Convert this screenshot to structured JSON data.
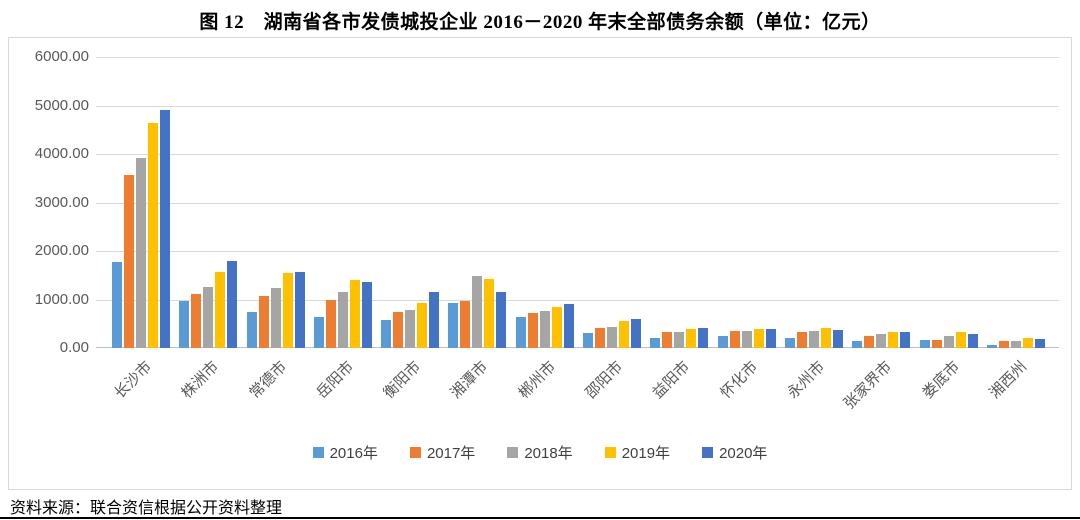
{
  "title": "图 12　湖南省各市发债城投企业 2016－2020 年末全部债务余额（单位：亿元）",
  "source_note": "资料来源：联合资信根据公开资料整理",
  "colors": {
    "gridline": "#d9d9d9",
    "baseline": "#c0c0c0",
    "axis_text": "#595959",
    "box_border": "#d9d9d9"
  },
  "chart_data": {
    "type": "bar",
    "title": "图 12　湖南省各市发债城投企业 2016－2020 年末全部债务余额（单位：亿元）",
    "xlabel": "",
    "ylabel": "",
    "unit": "亿元",
    "ylim": [
      0,
      6000
    ],
    "ytick_step": 1000,
    "ytick_labels": [
      "0.00",
      "1000.00",
      "2000.00",
      "3000.00",
      "4000.00",
      "5000.00",
      "6000.00"
    ],
    "grid": true,
    "legend_position": "bottom",
    "categories": [
      "长沙市",
      "株洲市",
      "常德市",
      "岳阳市",
      "衡阳市",
      "湘潭市",
      "郴州市",
      "邵阳市",
      "益阳市",
      "怀化市",
      "永州市",
      "张家界市",
      "娄底市",
      "湘西州"
    ],
    "series": [
      {
        "name": "2016年",
        "color": "#5B9BD5",
        "values": [
          1770,
          960,
          750,
          640,
          580,
          930,
          640,
          300,
          210,
          240,
          210,
          140,
          160,
          60
        ]
      },
      {
        "name": "2017年",
        "color": "#ED7D31",
        "values": [
          3560,
          1110,
          1070,
          990,
          750,
          970,
          720,
          410,
          320,
          360,
          340,
          240,
          170,
          140
        ]
      },
      {
        "name": "2018年",
        "color": "#A5A5A5",
        "values": [
          3920,
          1250,
          1240,
          1160,
          790,
          1490,
          760,
          440,
          340,
          350,
          350,
          280,
          240,
          140
        ]
      },
      {
        "name": "2019年",
        "color": "#FFC000",
        "values": [
          4640,
          1560,
          1550,
          1400,
          930,
          1420,
          850,
          560,
          400,
          400,
          420,
          320,
          340,
          200
        ]
      },
      {
        "name": "2020年",
        "color": "#4472C4",
        "values": [
          4900,
          1800,
          1560,
          1360,
          1160,
          1150,
          900,
          600,
          420,
          390,
          380,
          330,
          290,
          180
        ]
      }
    ]
  }
}
